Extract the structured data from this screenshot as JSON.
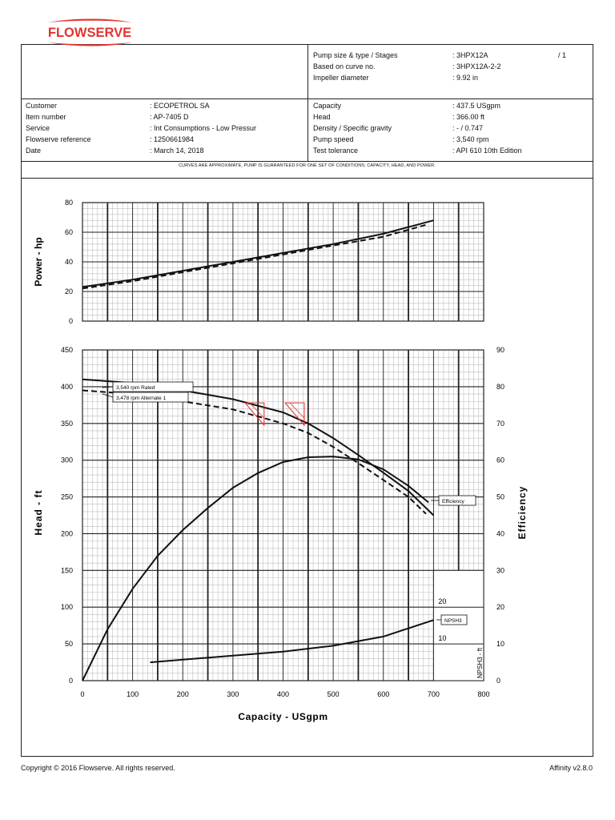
{
  "header": {
    "logo_text": "FLOWSERVE",
    "brand_color": "#e3342f",
    "pump_info": [
      {
        "label": "Pump size & type / Stages",
        "value": ": 3HPX12A",
        "extra": "/ 1"
      },
      {
        "label": "Based on curve no.",
        "value": ": 3HPX12A-2-2"
      },
      {
        "label": "Impeller diameter",
        "value": ": 9.92 in"
      }
    ]
  },
  "customer_info": [
    {
      "label": "Customer",
      "value": ": ECOPETROL SA"
    },
    {
      "label": "Item number",
      "value": ": AP-7405 D"
    },
    {
      "label": "Service",
      "value": ": Int Consumptions - Low Pressur"
    },
    {
      "label": "Flowserve reference",
      "value": ": 1250661984"
    },
    {
      "label": "Date",
      "value": ": March 14, 2018"
    }
  ],
  "conditions": [
    {
      "label": "Capacity",
      "value": ": 437.5 USgpm"
    },
    {
      "label": "Head",
      "value": ": 366.00 ft"
    },
    {
      "label": "Density / Specific gravity",
      "value": ": - / 0.747"
    },
    {
      "label": "Pump speed",
      "value": ": 3,540 rpm"
    },
    {
      "label": "Test tolerance",
      "value": ": API 610 10th Edition"
    }
  ],
  "note": "CURVES ARE APPROXIMATE, PUMP IS GUARANTEED FOR ONE SET OF CONDITIONS; CAPACITY, HEAD, AND POWER.",
  "footer": {
    "copyright": "Copyright © 2016 Flowserve. All rights reserved.",
    "version": "Affinity v2.8.0"
  },
  "chart_data": [
    {
      "type": "line",
      "ylabel": "Power - hp",
      "xlim": [
        0,
        800
      ],
      "ylim": [
        0,
        80
      ],
      "y_ticks": [
        0,
        20,
        40,
        60,
        80
      ],
      "grid": true,
      "series": [
        {
          "style": "solid",
          "x": [
            0,
            100,
            200,
            300,
            400,
            500,
            600,
            700
          ],
          "y": [
            23,
            28,
            34,
            40,
            46,
            52,
            59,
            68
          ]
        },
        {
          "style": "dashed",
          "x": [
            0,
            100,
            200,
            300,
            400,
            500,
            600,
            685
          ],
          "y": [
            22,
            27,
            33,
            39,
            45,
            51,
            57,
            65
          ]
        }
      ]
    },
    {
      "type": "line",
      "xlabel": "Capacity - USgpm",
      "ylabel": "Head - ft",
      "y2label": "Efficiency",
      "y3label": "NPSH3 - ft",
      "xlim": [
        0,
        800
      ],
      "x_ticks": [
        0,
        100,
        200,
        300,
        400,
        500,
        600,
        700,
        800
      ],
      "ylim": [
        0,
        450
      ],
      "y_ticks": [
        0,
        50,
        100,
        150,
        200,
        250,
        300,
        350,
        400,
        450
      ],
      "y2lim": [
        0,
        90
      ],
      "y2_ticks": [
        0,
        10,
        20,
        30,
        40,
        50,
        60,
        70,
        80,
        90
      ],
      "y3_ticks": [
        10,
        20
      ],
      "grid": true,
      "series": [
        {
          "name": "3,540 rpm    Rated",
          "axis": "head",
          "style": "solid",
          "x": [
            0,
            100,
            200,
            300,
            400,
            450,
            500,
            550,
            600,
            650,
            700
          ],
          "y": [
            410,
            405,
            395,
            383,
            365,
            350,
            330,
            307,
            283,
            258,
            225
          ]
        },
        {
          "name": "3,478 rpm    Alternate 1",
          "axis": "head",
          "style": "dashed",
          "x": [
            0,
            100,
            200,
            300,
            400,
            450,
            500,
            550,
            600,
            650,
            685
          ],
          "y": [
            395,
            390,
            380,
            369,
            350,
            337,
            318,
            296,
            273,
            250,
            227
          ]
        },
        {
          "name": "Efficiency",
          "axis": "efficiency",
          "style": "solid",
          "x": [
            0,
            50,
            100,
            150,
            200,
            250,
            300,
            350,
            400,
            450,
            500,
            550,
            600,
            650,
            690
          ],
          "y": [
            0,
            14,
            25,
            34,
            41,
            47,
            52.5,
            56.5,
            59.5,
            60.8,
            61,
            60.2,
            57.5,
            53,
            48.5
          ]
        },
        {
          "name": "NPSH3",
          "axis": "npsh",
          "style": "solid",
          "x": [
            135,
            200,
            300,
            400,
            500,
            600,
            700
          ],
          "y": [
            5,
            5.7,
            6.8,
            7.9,
            9.5,
            12,
            16.5
          ]
        }
      ],
      "markers": [
        {
          "type": "tolerance-triangle",
          "x": 340,
          "y": 366
        },
        {
          "type": "tolerance-triangle",
          "x": 420,
          "y": 366
        }
      ]
    }
  ]
}
